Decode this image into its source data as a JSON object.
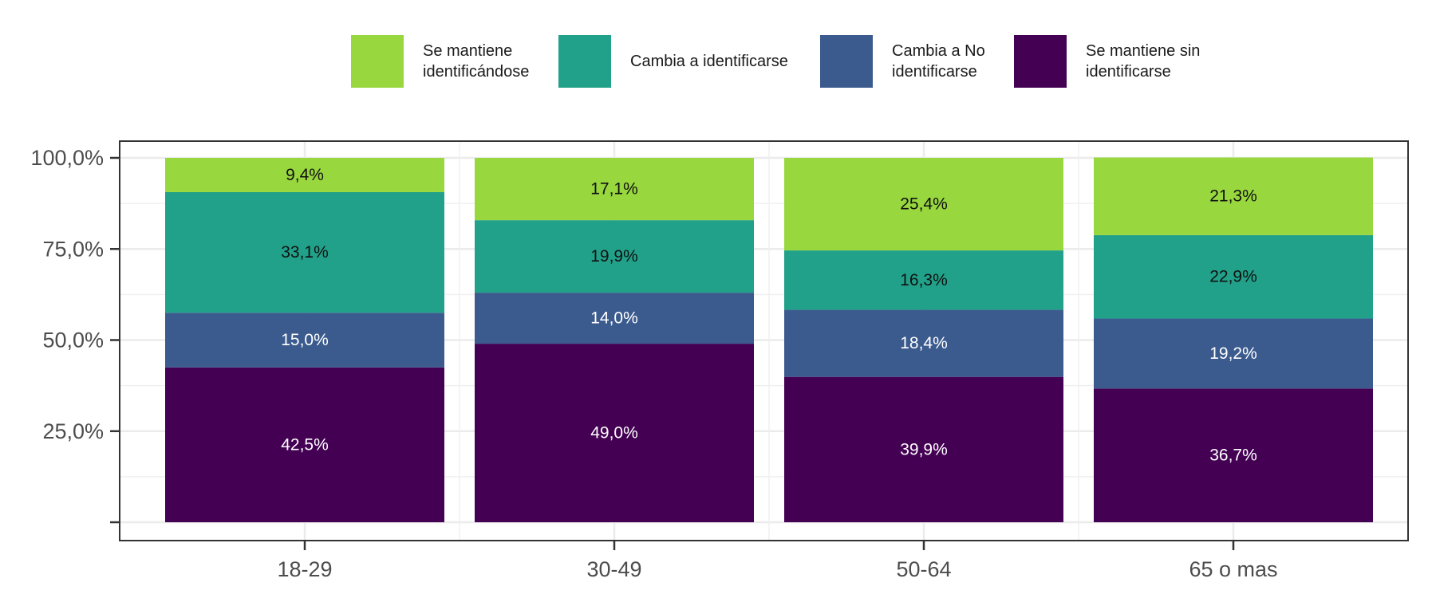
{
  "chart_data": {
    "type": "bar",
    "stacked": true,
    "categories": [
      "18-29",
      "30-49",
      "50-64",
      "65 o mas"
    ],
    "ylim": [
      0,
      100
    ],
    "y_ticks": [
      25,
      50,
      75,
      100
    ],
    "y_tick_labels": [
      "25,0%",
      "50,0%",
      "75,0%",
      "100,0%"
    ],
    "grid": true,
    "legend_position": "top",
    "series": [
      {
        "name": "Se mantiene sin identificarse",
        "legend_lines": [
          "Se mantiene sin",
          "identificarse"
        ],
        "color": "#440154",
        "label_color": "#ffffff",
        "values": [
          42.5,
          49.0,
          39.9,
          36.7
        ],
        "labels": [
          "42,5%",
          "49,0%",
          "39,9%",
          "36,7%"
        ]
      },
      {
        "name": "Cambia a No identificarse",
        "legend_lines": [
          "Cambia a No",
          "identificarse"
        ],
        "color": "#3b5b8e",
        "label_color": "#ffffff",
        "values": [
          15.0,
          14.0,
          18.4,
          19.2
        ],
        "labels": [
          "15,0%",
          "14,0%",
          "18,4%",
          "19,2%"
        ]
      },
      {
        "name": "Cambia a identificarse",
        "legend_lines": [
          "Cambia a identificarse"
        ],
        "color": "#21a189",
        "label_color": "#111111",
        "values": [
          33.1,
          19.9,
          16.3,
          22.9
        ],
        "labels": [
          "33,1%",
          "19,9%",
          "16,3%",
          "22,9%"
        ]
      },
      {
        "name": "Se mantiene identificándose",
        "legend_lines": [
          "Se mantiene",
          "identificándose"
        ],
        "color": "#98d83e",
        "label_color": "#111111",
        "values": [
          9.4,
          17.1,
          25.4,
          21.3
        ],
        "labels": [
          "9,4%",
          "17,1%",
          "25,4%",
          "21,3%"
        ]
      }
    ],
    "legend_order": [
      3,
      2,
      1,
      0
    ]
  }
}
